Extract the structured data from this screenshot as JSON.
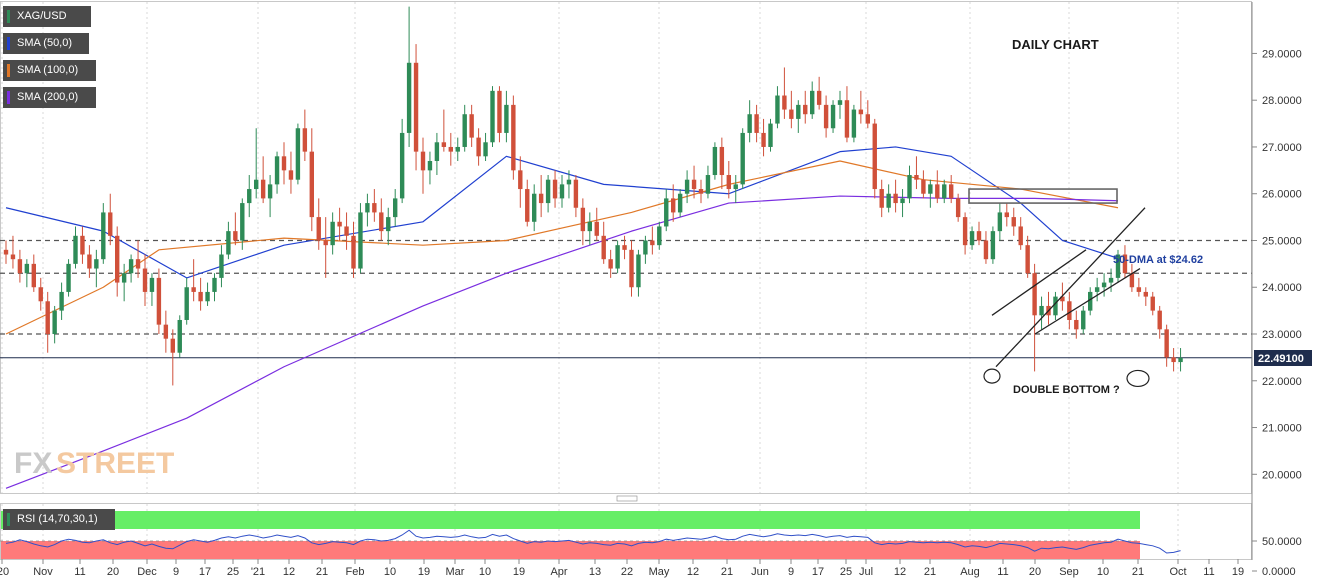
{
  "legend": {
    "symbol": "XAG/USD",
    "sma50": "SMA (50,0)",
    "sma100": "SMA (100,0)",
    "sma200": "SMA (200,0)",
    "rsi": "RSI (14,70,30,1)"
  },
  "colors": {
    "sma50": "#2040d0",
    "sma100": "#e07828",
    "sma200": "#7a2ee0",
    "bull": "#2e8b57",
    "bear": "#d0503a",
    "rsi_line": "#3050c8",
    "rsi_over": "#66ee66",
    "rsi_under": "#ff7a7a"
  },
  "annotations": {
    "title": "DAILY CHART",
    "dma_label": "50-DMA at $24.62",
    "pattern_label": "DOUBLE BOTTOM ?",
    "current_price": "22.49100",
    "watermark_fx": "FX",
    "watermark_street": "STREET"
  },
  "chart_data": {
    "type": "candlestick",
    "title": "DAILY CHART",
    "symbol": "XAG/USD",
    "ylim": [
      19.6,
      30.1
    ],
    "price_ticks": [
      "29.0000",
      "28.0000",
      "27.0000",
      "26.0000",
      "25.0000",
      "24.0000",
      "23.0000",
      "22.0000",
      "21.0000",
      "20.0000"
    ],
    "rsi_ticks": [
      "50.0000",
      "0.0000"
    ],
    "x_ticks": [
      "'20",
      "Nov",
      "11",
      "20",
      "Dec",
      "9",
      "17",
      "25",
      "'21",
      "12",
      "21",
      "Feb",
      "10",
      "19",
      "Mar",
      "10",
      "19",
      "Apr",
      "13",
      "22",
      "May",
      "12",
      "21",
      "Jun",
      "9",
      "17",
      "25",
      "Jul",
      "12",
      "21",
      "Aug",
      "11",
      "20",
      "Sep",
      "10",
      "21",
      "Oct",
      "11",
      "19"
    ],
    "current_price": 22.491,
    "horizontal_levels": [
      25.0,
      24.3,
      23.0
    ],
    "sma50_last": 24.62,
    "candles": [
      [
        24.8,
        25.0,
        24.5,
        24.7
      ],
      [
        24.7,
        25.1,
        24.4,
        24.6
      ],
      [
        24.6,
        24.8,
        24.1,
        24.3
      ],
      [
        24.3,
        24.6,
        24.0,
        24.5
      ],
      [
        24.5,
        24.7,
        23.9,
        24.0
      ],
      [
        24.0,
        24.2,
        23.5,
        23.7
      ],
      [
        23.7,
        23.9,
        22.6,
        23.0
      ],
      [
        23.0,
        23.6,
        22.8,
        23.5
      ],
      [
        23.5,
        24.1,
        23.3,
        23.9
      ],
      [
        23.9,
        24.6,
        23.8,
        24.5
      ],
      [
        24.5,
        25.3,
        24.4,
        25.1
      ],
      [
        25.1,
        25.3,
        24.5,
        24.7
      ],
      [
        24.7,
        24.9,
        24.2,
        24.4
      ],
      [
        24.4,
        24.8,
        24.0,
        24.6
      ],
      [
        24.6,
        25.8,
        24.5,
        25.6
      ],
      [
        25.6,
        26.0,
        24.9,
        25.1
      ],
      [
        25.1,
        25.3,
        23.8,
        24.1
      ],
      [
        24.1,
        24.5,
        23.7,
        24.3
      ],
      [
        24.3,
        24.7,
        24.1,
        24.6
      ],
      [
        24.6,
        25.0,
        24.2,
        24.4
      ],
      [
        24.4,
        24.7,
        23.6,
        23.9
      ],
      [
        23.9,
        24.3,
        23.6,
        24.2
      ],
      [
        24.2,
        24.4,
        23.0,
        23.2
      ],
      [
        23.2,
        23.5,
        22.6,
        22.9
      ],
      [
        22.9,
        23.1,
        21.9,
        22.6
      ],
      [
        22.6,
        23.4,
        22.5,
        23.3
      ],
      [
        23.3,
        24.2,
        23.2,
        24.0
      ],
      [
        24.0,
        24.6,
        23.7,
        23.9
      ],
      [
        23.9,
        24.2,
        23.5,
        23.7
      ],
      [
        23.7,
        24.1,
        23.6,
        23.9
      ],
      [
        23.9,
        24.3,
        23.7,
        24.2
      ],
      [
        24.2,
        24.9,
        24.0,
        24.7
      ],
      [
        24.7,
        25.4,
        24.6,
        25.2
      ],
      [
        25.2,
        25.6,
        24.9,
        25.0
      ],
      [
        25.0,
        25.9,
        24.8,
        25.8
      ],
      [
        25.8,
        26.4,
        25.5,
        26.1
      ],
      [
        26.1,
        27.4,
        25.9,
        26.3
      ],
      [
        26.3,
        26.8,
        25.8,
        25.9
      ],
      [
        25.9,
        26.4,
        25.5,
        26.2
      ],
      [
        26.2,
        26.9,
        26.0,
        26.8
      ],
      [
        26.8,
        27.1,
        26.2,
        26.5
      ],
      [
        26.5,
        26.9,
        26.0,
        26.3
      ],
      [
        26.3,
        27.5,
        26.2,
        27.4
      ],
      [
        27.4,
        27.8,
        26.7,
        26.9
      ],
      [
        26.9,
        27.4,
        25.2,
        25.5
      ],
      [
        25.5,
        25.9,
        24.8,
        25.0
      ],
      [
        25.0,
        25.5,
        24.2,
        24.9
      ],
      [
        24.9,
        25.6,
        24.7,
        25.4
      ],
      [
        25.4,
        25.7,
        25.0,
        25.3
      ],
      [
        25.3,
        25.6,
        24.8,
        25.1
      ],
      [
        25.1,
        25.4,
        24.2,
        24.4
      ],
      [
        24.4,
        25.8,
        24.3,
        25.6
      ],
      [
        25.6,
        26.0,
        25.3,
        25.8
      ],
      [
        25.8,
        26.1,
        25.4,
        25.6
      ],
      [
        25.6,
        25.9,
        25.0,
        25.2
      ],
      [
        25.2,
        25.7,
        24.9,
        25.5
      ],
      [
        25.5,
        26.1,
        25.3,
        25.9
      ],
      [
        25.9,
        27.6,
        25.8,
        27.3
      ],
      [
        27.3,
        30.0,
        27.0,
        28.8
      ],
      [
        28.8,
        29.2,
        26.5,
        26.9
      ],
      [
        26.9,
        27.2,
        26.0,
        26.5
      ],
      [
        26.5,
        26.9,
        26.2,
        26.7
      ],
      [
        26.7,
        27.3,
        26.4,
        27.1
      ],
      [
        27.1,
        27.8,
        26.9,
        27.0
      ],
      [
        27.0,
        27.3,
        26.6,
        26.9
      ],
      [
        26.9,
        27.2,
        26.7,
        27.0
      ],
      [
        27.0,
        27.9,
        26.9,
        27.7
      ],
      [
        27.7,
        27.9,
        27.0,
        27.2
      ],
      [
        27.2,
        27.4,
        26.6,
        26.8
      ],
      [
        26.8,
        27.3,
        26.7,
        27.1
      ],
      [
        27.1,
        28.3,
        27.0,
        28.2
      ],
      [
        28.2,
        28.3,
        27.1,
        27.3
      ],
      [
        27.3,
        28.2,
        27.1,
        27.9
      ],
      [
        27.9,
        28.1,
        26.3,
        26.5
      ],
      [
        26.5,
        26.8,
        25.7,
        26.1
      ],
      [
        26.1,
        26.3,
        25.3,
        25.4
      ],
      [
        25.4,
        26.2,
        25.2,
        26.0
      ],
      [
        26.0,
        26.4,
        25.5,
        25.8
      ],
      [
        25.8,
        26.4,
        25.6,
        26.3
      ],
      [
        26.3,
        26.5,
        25.7,
        25.9
      ],
      [
        25.9,
        26.4,
        25.7,
        26.2
      ],
      [
        26.2,
        26.5,
        25.9,
        26.3
      ],
      [
        26.3,
        26.4,
        25.5,
        25.7
      ],
      [
        25.7,
        25.9,
        24.9,
        25.2
      ],
      [
        25.2,
        25.6,
        24.9,
        25.4
      ],
      [
        25.4,
        25.7,
        25.0,
        25.1
      ],
      [
        25.1,
        25.4,
        24.5,
        24.6
      ],
      [
        24.6,
        24.8,
        24.2,
        24.4
      ],
      [
        24.4,
        25.0,
        24.3,
        24.9
      ],
      [
        24.9,
        25.1,
        24.6,
        24.8
      ],
      [
        24.8,
        25.0,
        23.8,
        24.0
      ],
      [
        24.0,
        24.8,
        23.8,
        24.7
      ],
      [
        24.7,
        25.1,
        24.5,
        25.0
      ],
      [
        25.0,
        25.3,
        24.7,
        24.9
      ],
      [
        24.9,
        25.4,
        24.8,
        25.3
      ],
      [
        25.3,
        26.1,
        25.2,
        25.9
      ],
      [
        25.9,
        26.2,
        25.4,
        25.6
      ],
      [
        25.6,
        26.1,
        25.5,
        26.0
      ],
      [
        26.0,
        26.5,
        25.8,
        26.3
      ],
      [
        26.3,
        26.6,
        25.9,
        26.1
      ],
      [
        26.1,
        26.3,
        25.8,
        26.0
      ],
      [
        26.0,
        26.6,
        25.9,
        26.4
      ],
      [
        26.4,
        27.1,
        26.3,
        27.0
      ],
      [
        27.0,
        27.2,
        26.1,
        26.4
      ],
      [
        26.4,
        26.7,
        25.9,
        26.1
      ],
      [
        26.1,
        26.4,
        25.8,
        26.2
      ],
      [
        26.2,
        27.4,
        26.1,
        27.3
      ],
      [
        27.3,
        28.0,
        27.1,
        27.7
      ],
      [
        27.7,
        27.9,
        27.1,
        27.3
      ],
      [
        27.3,
        27.6,
        26.8,
        27.0
      ],
      [
        27.0,
        27.6,
        26.9,
        27.5
      ],
      [
        27.5,
        28.3,
        27.4,
        28.1
      ],
      [
        28.1,
        28.7,
        27.6,
        27.8
      ],
      [
        27.8,
        28.2,
        27.4,
        27.6
      ],
      [
        27.6,
        28.0,
        27.3,
        27.9
      ],
      [
        27.9,
        28.2,
        27.5,
        27.7
      ],
      [
        27.7,
        28.4,
        27.6,
        28.2
      ],
      [
        28.2,
        28.5,
        27.8,
        27.9
      ],
      [
        27.9,
        28.1,
        27.2,
        27.4
      ],
      [
        27.4,
        28.0,
        27.3,
        27.9
      ],
      [
        27.9,
        28.2,
        27.6,
        28.0
      ],
      [
        28.0,
        28.3,
        27.1,
        27.2
      ],
      [
        27.2,
        27.9,
        27.1,
        27.8
      ],
      [
        27.8,
        28.2,
        27.5,
        27.7
      ],
      [
        27.7,
        28.0,
        27.4,
        27.5
      ],
      [
        27.5,
        27.6,
        25.9,
        26.1
      ],
      [
        26.1,
        26.3,
        25.5,
        25.7
      ],
      [
        25.7,
        26.2,
        25.6,
        26.0
      ],
      [
        26.0,
        26.3,
        25.6,
        25.8
      ],
      [
        25.8,
        26.1,
        25.5,
        25.9
      ],
      [
        25.9,
        26.6,
        25.8,
        26.4
      ],
      [
        26.4,
        26.8,
        26.1,
        26.3
      ],
      [
        26.3,
        26.5,
        25.9,
        26.0
      ],
      [
        26.0,
        26.3,
        25.7,
        26.2
      ],
      [
        26.2,
        26.5,
        25.8,
        25.9
      ],
      [
        25.9,
        26.3,
        25.8,
        26.2
      ],
      [
        26.2,
        26.4,
        25.8,
        25.9
      ],
      [
        25.9,
        26.0,
        25.4,
        25.5
      ],
      [
        25.5,
        25.6,
        24.7,
        24.9
      ],
      [
        24.9,
        25.3,
        24.8,
        25.2
      ],
      [
        25.2,
        25.4,
        24.9,
        25.0
      ],
      [
        25.0,
        25.2,
        24.5,
        24.6
      ],
      [
        24.6,
        25.3,
        24.5,
        25.2
      ],
      [
        25.2,
        25.8,
        25.0,
        25.6
      ],
      [
        25.6,
        25.8,
        25.3,
        25.5
      ],
      [
        25.5,
        25.7,
        25.1,
        25.3
      ],
      [
        25.3,
        25.5,
        24.8,
        24.9
      ],
      [
        24.9,
        25.1,
        24.2,
        24.3
      ],
      [
        24.3,
        24.5,
        22.2,
        23.4
      ],
      [
        23.4,
        23.8,
        23.1,
        23.6
      ],
      [
        23.6,
        23.9,
        23.2,
        23.4
      ],
      [
        23.4,
        23.9,
        23.3,
        23.8
      ],
      [
        23.8,
        24.1,
        23.5,
        23.7
      ],
      [
        23.7,
        23.9,
        23.1,
        23.3
      ],
      [
        23.3,
        23.5,
        22.9,
        23.1
      ],
      [
        23.1,
        23.6,
        23.0,
        23.5
      ],
      [
        23.5,
        24.0,
        23.4,
        23.9
      ],
      [
        23.9,
        24.2,
        23.7,
        24.0
      ],
      [
        24.0,
        24.3,
        23.8,
        24.1
      ],
      [
        24.1,
        24.4,
        23.9,
        24.2
      ],
      [
        24.2,
        24.8,
        24.1,
        24.7
      ],
      [
        24.7,
        24.9,
        24.2,
        24.3
      ],
      [
        24.3,
        24.5,
        23.9,
        24.0
      ],
      [
        24.0,
        24.2,
        23.8,
        23.9
      ],
      [
        23.9,
        24.0,
        23.6,
        23.8
      ],
      [
        23.8,
        23.9,
        23.4,
        23.5
      ],
      [
        23.5,
        23.6,
        22.9,
        23.1
      ],
      [
        23.1,
        23.2,
        22.3,
        22.5
      ],
      [
        22.5,
        22.7,
        22.2,
        22.4
      ],
      [
        22.4,
        22.7,
        22.2,
        22.49
      ]
    ],
    "series": [
      {
        "name": "SMA (50,0)",
        "values": [
          [
            0,
            25.7
          ],
          [
            14,
            25.2
          ],
          [
            26,
            24.2
          ],
          [
            40,
            24.9
          ],
          [
            60,
            25.4
          ],
          [
            72,
            26.8
          ],
          [
            86,
            26.2
          ],
          [
            104,
            26.0
          ],
          [
            120,
            26.9
          ],
          [
            128,
            27.0
          ],
          [
            136,
            26.8
          ],
          [
            146,
            25.8
          ],
          [
            152,
            25.0
          ],
          [
            160,
            24.62
          ]
        ]
      },
      {
        "name": "SMA (100,0)",
        "values": [
          [
            0,
            23.0
          ],
          [
            14,
            24.0
          ],
          [
            22,
            24.8
          ],
          [
            40,
            25.05
          ],
          [
            60,
            24.9
          ],
          [
            72,
            25.0
          ],
          [
            90,
            25.6
          ],
          [
            104,
            26.2
          ],
          [
            120,
            26.7
          ],
          [
            132,
            26.3
          ],
          [
            146,
            26.1
          ],
          [
            160,
            25.7
          ]
        ]
      },
      {
        "name": "SMA (200,0)",
        "values": [
          [
            0,
            19.7
          ],
          [
            14,
            20.5
          ],
          [
            26,
            21.2
          ],
          [
            40,
            22.3
          ],
          [
            60,
            23.6
          ],
          [
            72,
            24.3
          ],
          [
            90,
            25.2
          ],
          [
            104,
            25.8
          ],
          [
            120,
            25.95
          ],
          [
            136,
            25.9
          ],
          [
            148,
            25.9
          ],
          [
            160,
            25.85
          ]
        ]
      }
    ],
    "rsi": [
      46,
      48,
      52,
      49,
      45,
      42,
      40,
      44,
      50,
      53,
      51,
      48,
      47,
      50,
      52,
      47,
      44,
      48,
      50,
      46,
      42,
      45,
      41,
      38,
      37,
      43,
      49,
      52,
      50,
      48,
      51,
      55,
      57,
      55,
      58,
      60,
      58,
      55,
      57,
      60,
      58,
      56,
      59,
      55,
      47,
      44,
      46,
      49,
      48,
      47,
      44,
      50,
      53,
      52,
      50,
      51,
      54,
      60,
      68,
      58,
      55,
      56,
      58,
      57,
      56,
      57,
      60,
      57,
      55,
      56,
      61,
      58,
      60,
      54,
      50,
      46,
      49,
      48,
      50,
      49,
      50,
      51,
      48,
      45,
      47,
      46,
      44,
      43,
      46,
      45,
      42,
      46,
      48,
      47,
      49,
      53,
      51,
      53,
      55,
      54,
      53,
      55,
      58,
      54,
      52,
      53,
      58,
      61,
      59,
      57,
      59,
      62,
      60,
      59,
      60,
      59,
      61,
      59,
      56,
      58,
      59,
      56,
      58,
      57,
      56,
      47,
      44,
      46,
      45,
      46,
      49,
      48,
      47,
      48,
      47,
      48,
      47,
      44,
      40,
      42,
      41,
      39,
      42,
      46,
      45,
      44,
      42,
      39,
      33,
      38,
      37,
      39,
      40,
      38,
      36,
      39,
      43,
      45,
      47,
      48,
      53,
      50,
      47,
      46,
      44,
      42,
      38,
      30,
      31,
      34
    ]
  }
}
